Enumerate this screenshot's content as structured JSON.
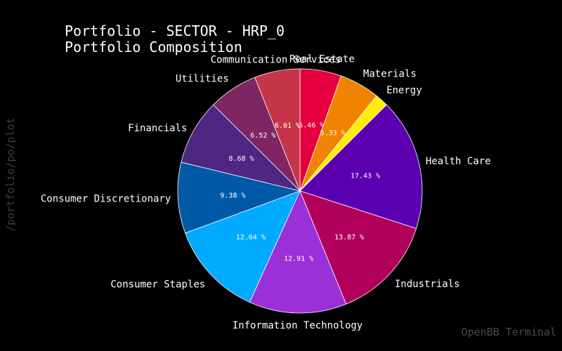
{
  "chart_data": {
    "type": "pie",
    "title_line1": "Portfolio - SECTOR - HRP_0",
    "title_line2": "Portfolio Composition",
    "slices": [
      {
        "label": "Real Estate",
        "value": 5.46,
        "color": "#e4003f"
      },
      {
        "label": "Materials",
        "value": 5.33,
        "color": "#f08300"
      },
      {
        "label": "Energy",
        "value": 1.74,
        "color": "#ffee00"
      },
      {
        "label": "Health Care",
        "value": 17.43,
        "color": "#5b00b0"
      },
      {
        "label": "Industrials",
        "value": 13.87,
        "color": "#b0005c"
      },
      {
        "label": "Information Technology",
        "value": 12.91,
        "color": "#9b30d8"
      },
      {
        "label": "Consumer Staples",
        "value": 12.64,
        "color": "#00aaff"
      },
      {
        "label": "Consumer Discretionary",
        "value": 9.38,
        "color": "#005aa8"
      },
      {
        "label": "Financials",
        "value": 8.68,
        "color": "#4e2683"
      },
      {
        "label": "Utilities",
        "value": 6.52,
        "color": "#7e2563"
      },
      {
        "label": "Communication Services",
        "value": 6.01,
        "color": "#c63448"
      }
    ]
  },
  "side_label": "/portfolio/po/plot",
  "watermark": "OpenBB Terminal"
}
